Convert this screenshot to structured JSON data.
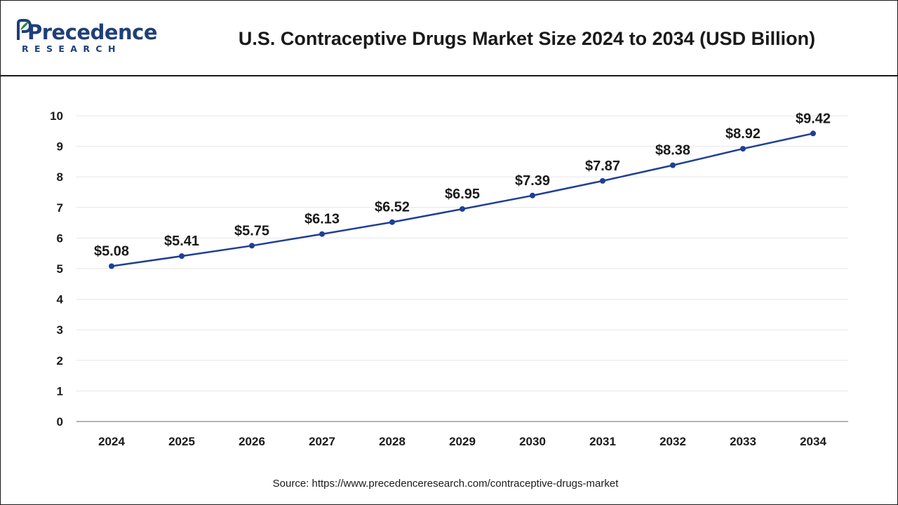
{
  "header": {
    "logo_name": "Precedence",
    "logo_sub": "RESEARCH",
    "title": "U.S. Contraceptive Drugs Market Size 2024 to 2034 (USD Billion)"
  },
  "footer": {
    "source": "Source: https://www.precedenceresearch.com/contraceptive-drugs-market"
  },
  "colors": {
    "line": "#1f3f94",
    "brand": "#1f3f7a",
    "grid": "#e6e6e6",
    "text": "#1a1a1a"
  },
  "chart_data": {
    "type": "line",
    "title": "U.S. Contraceptive Drugs Market Size 2024 to 2034 (USD Billion)",
    "xlabel": "",
    "ylabel": "",
    "categories": [
      "2024",
      "2025",
      "2026",
      "2027",
      "2028",
      "2029",
      "2030",
      "2031",
      "2032",
      "2033",
      "2034"
    ],
    "values": [
      5.08,
      5.41,
      5.75,
      6.13,
      6.52,
      6.95,
      7.39,
      7.87,
      8.38,
      8.92,
      9.42
    ],
    "data_labels": [
      "$5.08",
      "$5.41",
      "$5.75",
      "$6.13",
      "$6.52",
      "$6.95",
      "$7.39",
      "$7.87",
      "$8.38",
      "$8.92",
      "$9.42"
    ],
    "ylim": [
      0,
      10
    ],
    "yticks": [
      "0",
      "1",
      "2",
      "3",
      "4",
      "5",
      "6",
      "7",
      "8",
      "9",
      "10"
    ],
    "grid": true,
    "legend": "none"
  }
}
